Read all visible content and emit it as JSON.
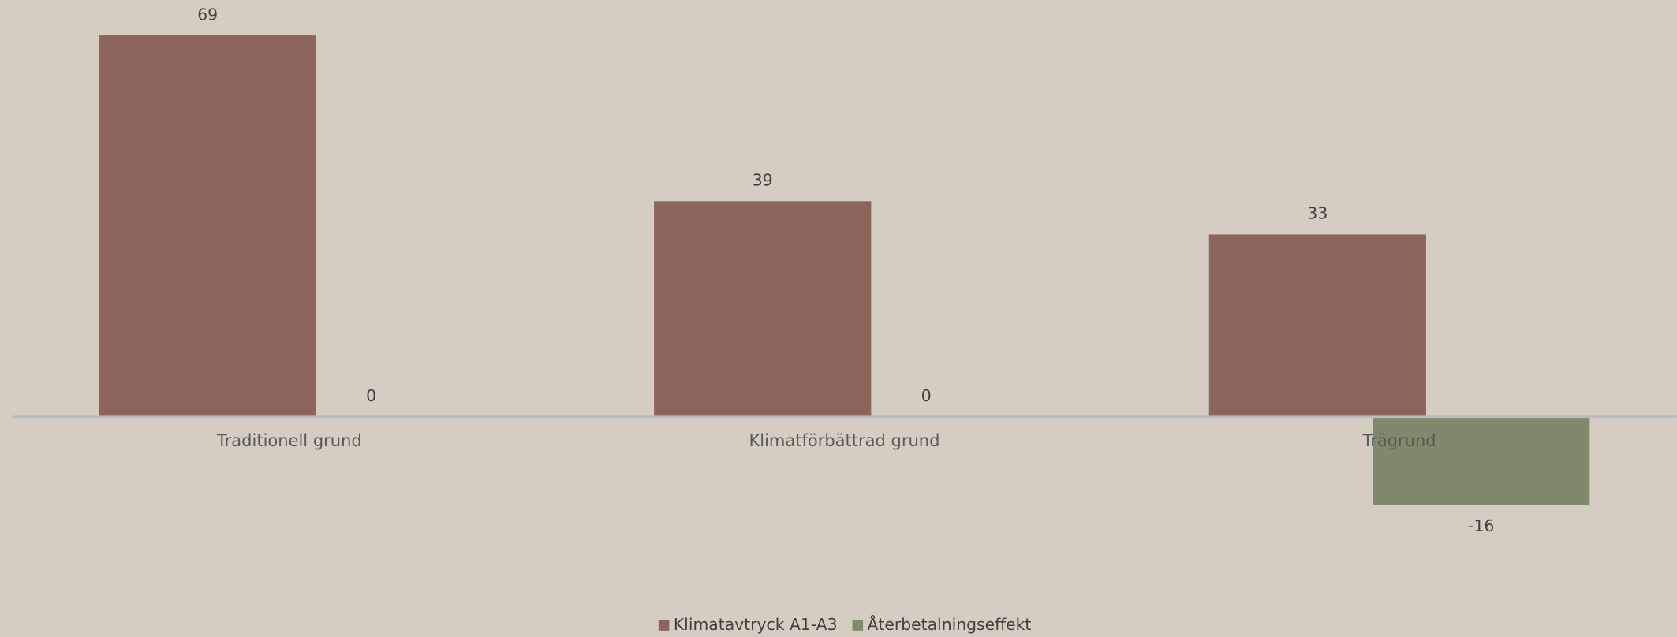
{
  "chart_data": {
    "type": "bar",
    "categories": [
      "Traditionell grund",
      "Klimatförbättrad grund",
      "Trägrund"
    ],
    "series": [
      {
        "name": "Klimatavtryck A1-A3",
        "color": "#8b655b",
        "values": [
          69,
          39,
          33
        ]
      },
      {
        "name": "Återbetalningseffekt",
        "color": "#7f8a6d",
        "values": [
          0,
          0,
          -16
        ]
      }
    ]
  }
}
